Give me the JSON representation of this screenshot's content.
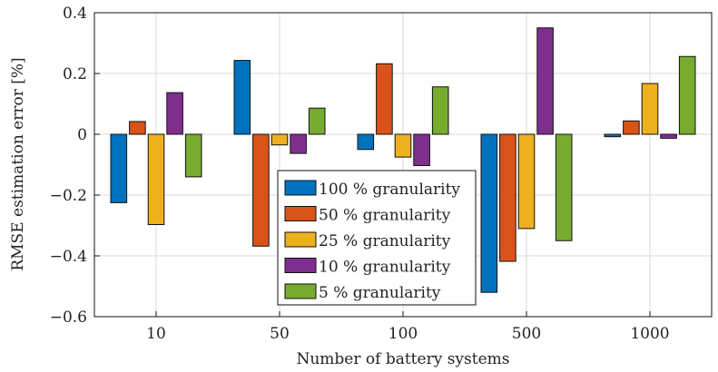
{
  "chart_data": {
    "type": "bar",
    "categories": [
      "10",
      "50",
      "100",
      "500",
      "1000"
    ],
    "series": [
      {
        "name": "100 % granularity",
        "color": "#0072BD",
        "values": [
          -0.225,
          0.243,
          -0.05,
          -0.52,
          -0.008
        ]
      },
      {
        "name": "50 % granularity",
        "color": "#D95319",
        "values": [
          0.042,
          -0.368,
          0.232,
          -0.418,
          0.044
        ]
      },
      {
        "name": "25 % granularity",
        "color": "#EDB120",
        "values": [
          -0.297,
          -0.035,
          -0.075,
          -0.31,
          0.167
        ]
      },
      {
        "name": "10 % granularity",
        "color": "#7E2F8E",
        "values": [
          0.137,
          -0.063,
          -0.103,
          0.35,
          -0.013
        ]
      },
      {
        "name": "5 % granularity",
        "color": "#77AC30",
        "values": [
          -0.14,
          0.086,
          0.156,
          -0.35,
          0.256
        ]
      }
    ],
    "xlabel": "Number of battery systems",
    "ylabel": "RMSE estimation error [%]",
    "ylim": [
      -0.6,
      0.4
    ],
    "yticks": [
      "−0.6",
      "−0.4",
      "−0.2",
      "0",
      "0.2",
      "0.4"
    ],
    "ytick_values": [
      -0.6,
      -0.4,
      -0.2,
      0,
      0.2,
      0.4
    ],
    "grid": true,
    "legend_position": "center-lower"
  }
}
